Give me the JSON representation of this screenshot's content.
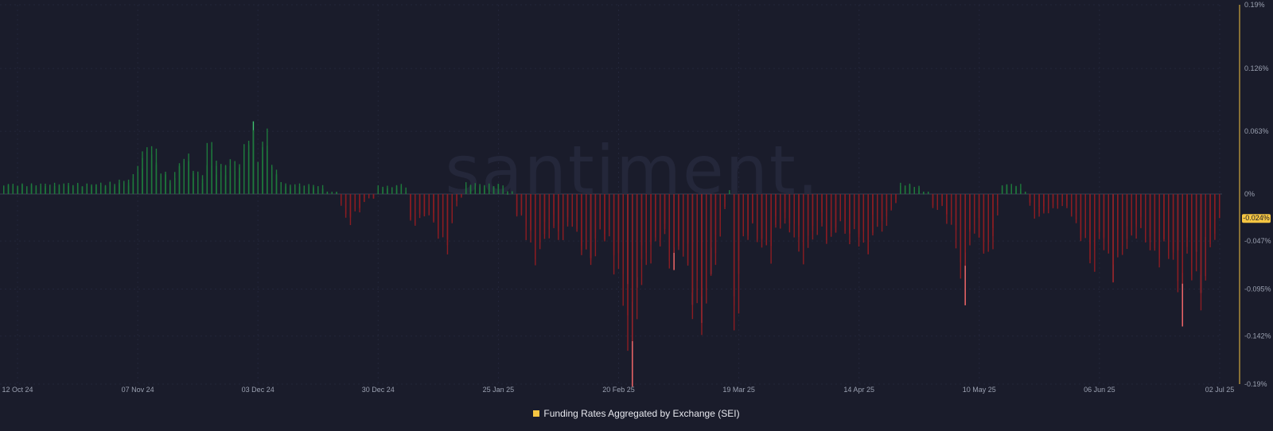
{
  "chart_data": {
    "type": "bar",
    "watermark": "santiment.",
    "x_range": [
      "2024-10-12",
      "2025-07-02"
    ],
    "x_ticks": [
      "12 Oct 24",
      "07 Nov 24",
      "03 Dec 24",
      "30 Dec 24",
      "25 Jan 25",
      "20 Feb 25",
      "19 Mar 25",
      "14 Apr 25",
      "10 May 25",
      "06 Jun 25",
      "02 Jul 25"
    ],
    "y_ticks": [
      "0.19%",
      "0.126%",
      "0.063%",
      "0%",
      "-0.047%",
      "-0.095%",
      "-0.142%",
      "-0.19%"
    ],
    "ylim": [
      -0.19,
      0.19
    ],
    "last_value_label": "-0.024%",
    "colors": {
      "background": "#1a1c2b",
      "positive": "#1e7a3c",
      "positive_highlight": "#3fc470",
      "negative": "#8c1c22",
      "negative_highlight": "#ff6b6b",
      "axis_accent": "#f5c542",
      "tick_text": "#9aa0b0"
    },
    "series": [
      {
        "name": "Funding Rates Aggregated by Exchange (SEI)",
        "points": [
          [
            "2024-10-12",
            0.009
          ],
          [
            "2024-10-20",
            0.008
          ],
          [
            "2024-10-28",
            0.009
          ],
          [
            "2024-11-01",
            0.009
          ],
          [
            "2024-11-05",
            0.01
          ],
          [
            "2024-11-09",
            0.012
          ],
          [
            "2024-11-11",
            0.03
          ],
          [
            "2024-11-13",
            0.047
          ],
          [
            "2024-11-15",
            0.024
          ],
          [
            "2024-11-18",
            0.01
          ],
          [
            "2024-11-20",
            0.038
          ],
          [
            "2024-11-22",
            0.027
          ],
          [
            "2024-11-24",
            0.012
          ],
          [
            "2024-11-26",
            0.045
          ],
          [
            "2024-11-28",
            0.021
          ],
          [
            "2024-11-30",
            0.03
          ],
          [
            "2024-12-02",
            0.022
          ],
          [
            "2024-12-04",
            0.05
          ],
          [
            "2024-12-05",
            0.07
          ],
          [
            "2024-12-06",
            0.03
          ],
          [
            "2024-12-08",
            0.053
          ],
          [
            "2024-12-10",
            0.02
          ],
          [
            "2024-12-12",
            0.008
          ],
          [
            "2024-12-16",
            0.008
          ],
          [
            "2024-12-20",
            0.007
          ],
          [
            "2024-12-24",
            -0.008
          ],
          [
            "2024-12-26",
            -0.025
          ],
          [
            "2024-12-28",
            -0.015
          ],
          [
            "2025-01-01",
            0.007
          ],
          [
            "2025-01-04",
            0.006
          ],
          [
            "2025-01-07",
            0.009
          ],
          [
            "2025-01-08",
            -0.03
          ],
          [
            "2025-01-10",
            -0.025
          ],
          [
            "2025-01-12",
            -0.018
          ],
          [
            "2025-01-14",
            -0.032
          ],
          [
            "2025-01-16",
            -0.052
          ],
          [
            "2025-01-18",
            -0.012
          ],
          [
            "2025-01-20",
            0.009
          ],
          [
            "2025-01-24",
            0.008
          ],
          [
            "2025-01-28",
            0.009
          ],
          [
            "2025-01-31",
            -0.018
          ],
          [
            "2025-02-02",
            -0.025
          ],
          [
            "2025-02-04",
            -0.06
          ],
          [
            "2025-02-06",
            -0.04
          ],
          [
            "2025-02-08",
            -0.03
          ],
          [
            "2025-02-10",
            -0.038
          ],
          [
            "2025-02-12",
            -0.025
          ],
          [
            "2025-02-14",
            -0.045
          ],
          [
            "2025-02-16",
            -0.07
          ],
          [
            "2025-02-18",
            -0.035
          ],
          [
            "2025-02-20",
            -0.04
          ],
          [
            "2025-02-22",
            -0.065
          ],
          [
            "2025-02-24",
            -0.09
          ],
          [
            "2025-02-25",
            -0.19
          ],
          [
            "2025-02-26",
            -0.1
          ],
          [
            "2025-02-28",
            -0.06
          ],
          [
            "2025-03-02",
            -0.05
          ],
          [
            "2025-03-04",
            -0.035
          ],
          [
            "2025-03-06",
            -0.07
          ],
          [
            "2025-03-08",
            -0.045
          ],
          [
            "2025-03-10",
            -0.09
          ],
          [
            "2025-03-12",
            -0.118
          ],
          [
            "2025-03-14",
            -0.08
          ],
          [
            "2025-03-16",
            -0.04
          ],
          [
            "2025-03-18",
            0.005
          ],
          [
            "2025-03-19",
            -0.138
          ],
          [
            "2025-03-21",
            -0.05
          ],
          [
            "2025-03-23",
            -0.03
          ],
          [
            "2025-03-25",
            -0.045
          ],
          [
            "2025-03-27",
            -0.055
          ],
          [
            "2025-03-29",
            -0.025
          ],
          [
            "2025-04-01",
            -0.03
          ],
          [
            "2025-04-03",
            -0.055
          ],
          [
            "2025-04-05",
            -0.04
          ],
          [
            "2025-04-07",
            -0.025
          ],
          [
            "2025-04-09",
            -0.05
          ],
          [
            "2025-04-11",
            -0.025
          ],
          [
            "2025-04-13",
            -0.04
          ],
          [
            "2025-04-15",
            -0.035
          ],
          [
            "2025-04-17",
            -0.055
          ],
          [
            "2025-04-19",
            -0.025
          ],
          [
            "2025-04-21",
            -0.03
          ],
          [
            "2025-04-24",
            0.009
          ],
          [
            "2025-04-28",
            0.008
          ],
          [
            "2025-05-01",
            -0.015
          ],
          [
            "2025-05-03",
            -0.01
          ],
          [
            "2025-05-05",
            -0.025
          ],
          [
            "2025-05-07",
            -0.045
          ],
          [
            "2025-05-08",
            -0.11
          ],
          [
            "2025-05-09",
            -0.04
          ],
          [
            "2025-05-11",
            -0.03
          ],
          [
            "2025-05-13",
            -0.065
          ],
          [
            "2025-05-15",
            -0.025
          ],
          [
            "2025-05-16",
            0.009
          ],
          [
            "2025-05-20",
            0.008
          ],
          [
            "2025-05-22",
            -0.01
          ],
          [
            "2025-05-24",
            -0.02
          ],
          [
            "2025-05-26",
            -0.015
          ],
          [
            "2025-05-28",
            -0.012
          ],
          [
            "2025-05-30",
            -0.008
          ],
          [
            "2025-06-01",
            -0.025
          ],
          [
            "2025-06-03",
            -0.045
          ],
          [
            "2025-06-05",
            -0.065
          ],
          [
            "2025-06-07",
            -0.035
          ],
          [
            "2025-06-09",
            -0.075
          ],
          [
            "2025-06-11",
            -0.05
          ],
          [
            "2025-06-13",
            -0.04
          ],
          [
            "2025-06-15",
            -0.03
          ],
          [
            "2025-06-17",
            -0.045
          ],
          [
            "2025-06-19",
            -0.06
          ],
          [
            "2025-06-21",
            -0.05
          ],
          [
            "2025-06-23",
            -0.07
          ],
          [
            "2025-06-24",
            -0.105
          ],
          [
            "2025-06-25",
            -0.06
          ],
          [
            "2025-06-27",
            -0.07
          ],
          [
            "2025-06-28",
            -0.09
          ],
          [
            "2025-06-29",
            -0.085
          ],
          [
            "2025-06-30",
            -0.05
          ],
          [
            "2025-07-01",
            -0.04
          ],
          [
            "2025-07-02",
            -0.024
          ]
        ]
      }
    ]
  }
}
